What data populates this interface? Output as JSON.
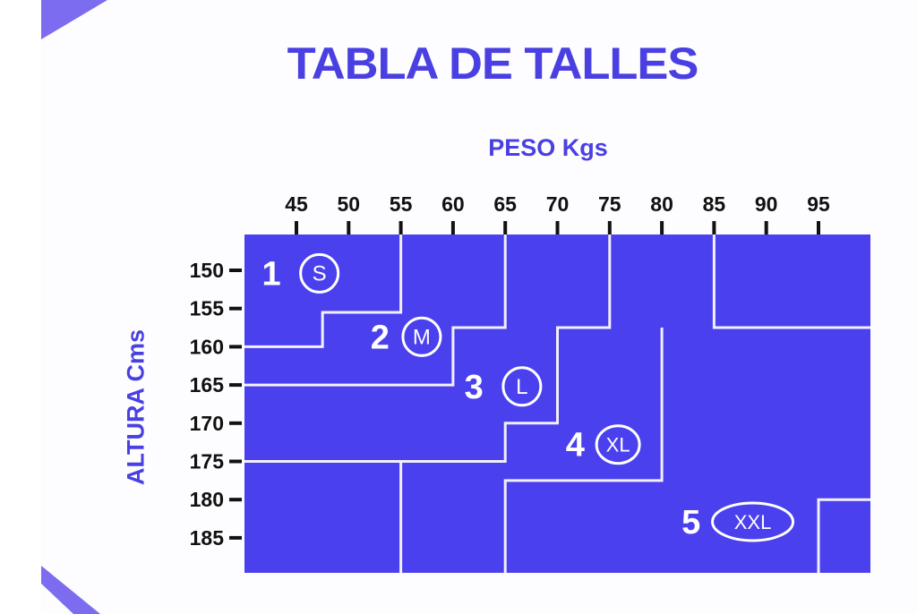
{
  "title": "TABLA DE TALLES",
  "colors": {
    "accent": "#4a40ee",
    "title": "#4a40e2",
    "line": "#f2f0ff"
  },
  "chart_data": {
    "type": "diagram",
    "xlabel": "PESO Kgs",
    "ylabel": "ALTURA Cms",
    "x_ticks": [
      45,
      50,
      55,
      60,
      65,
      70,
      75,
      80,
      85,
      90,
      95
    ],
    "y_ticks": [
      150,
      155,
      160,
      165,
      170,
      175,
      180,
      185
    ],
    "xlim": [
      40,
      100
    ],
    "ylim": [
      145,
      190
    ],
    "boundaries": [
      [
        [
          55,
          145
        ],
        [
          55,
          155.5
        ],
        [
          47.5,
          155.5
        ],
        [
          47.5,
          160
        ],
        [
          40,
          160
        ]
      ],
      [
        [
          65,
          145
        ],
        [
          65,
          157.5
        ],
        [
          60,
          157.5
        ],
        [
          60,
          165
        ],
        [
          40,
          165
        ]
      ],
      [
        [
          75,
          145
        ],
        [
          75,
          157.5
        ],
        [
          70,
          157.5
        ],
        [
          70,
          170
        ],
        [
          65,
          170
        ],
        [
          65,
          175
        ],
        [
          40,
          175
        ]
      ],
      [
        [
          55,
          175
        ],
        [
          55,
          190
        ]
      ],
      [
        [
          85,
          145
        ],
        [
          85,
          157.5
        ],
        [
          100,
          157.5
        ]
      ],
      [
        [
          80,
          157.5
        ],
        [
          80,
          177.5
        ],
        [
          65,
          177.5
        ],
        [
          65,
          190
        ]
      ],
      [
        [
          95,
          190
        ],
        [
          95,
          180
        ],
        [
          100,
          180
        ]
      ]
    ],
    "sizes": [
      {
        "number": "1",
        "size": "S",
        "number_at": [
          42.6,
          150.4
        ],
        "badge_at": [
          47.2,
          150.4
        ]
      },
      {
        "number": "2",
        "size": "M",
        "number_at": [
          53,
          158.7
        ],
        "badge_at": [
          57,
          158.7
        ]
      },
      {
        "number": "3",
        "size": "L",
        "number_at": [
          62,
          165.2
        ],
        "badge_at": [
          66.6,
          165.2
        ]
      },
      {
        "number": "4",
        "size": "XL",
        "number_at": [
          71.7,
          172.8
        ],
        "badge_at": [
          75.8,
          172.8
        ]
      },
      {
        "number": "5",
        "size": "XXL",
        "number_at": [
          82.8,
          182.9
        ],
        "badge_at": [
          88.7,
          182.9
        ]
      }
    ]
  }
}
